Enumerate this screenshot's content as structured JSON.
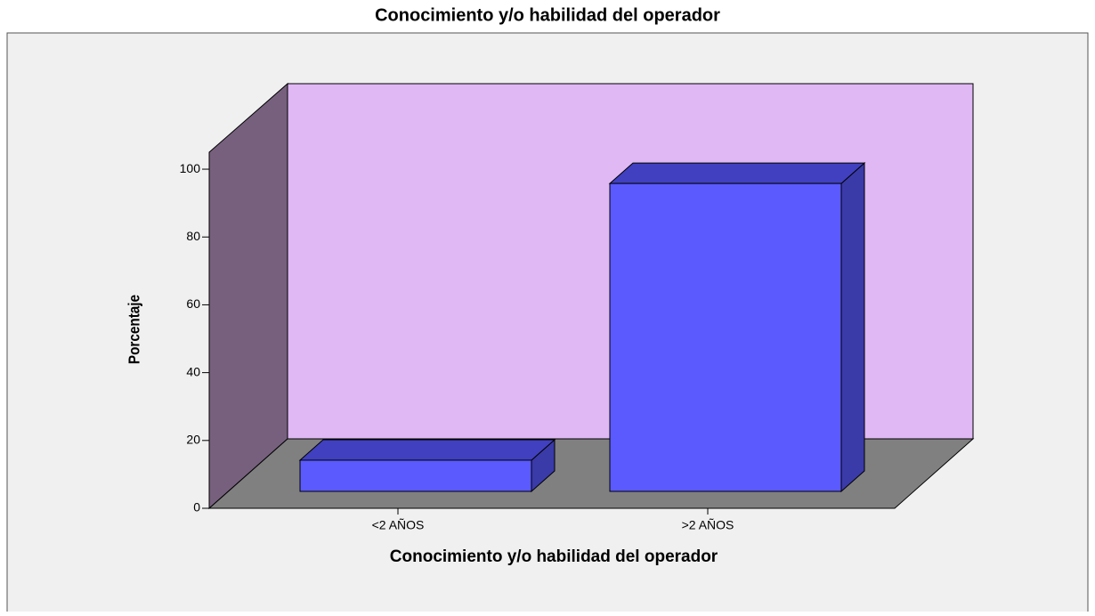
{
  "chart_data": {
    "type": "bar3d",
    "title": "Conocimiento y/o habilidad del operador",
    "xlabel": "Conocimiento y/o habilidad del operador",
    "ylabel": "Porcentaje",
    "categories": [
      "<2 AÑOS",
      ">2 AÑOS"
    ],
    "values": [
      9.2,
      90.8
    ],
    "color": "#5a5aff",
    "ylim": [
      0,
      105
    ],
    "yticks": [
      0,
      20,
      40,
      60,
      80,
      100
    ]
  }
}
